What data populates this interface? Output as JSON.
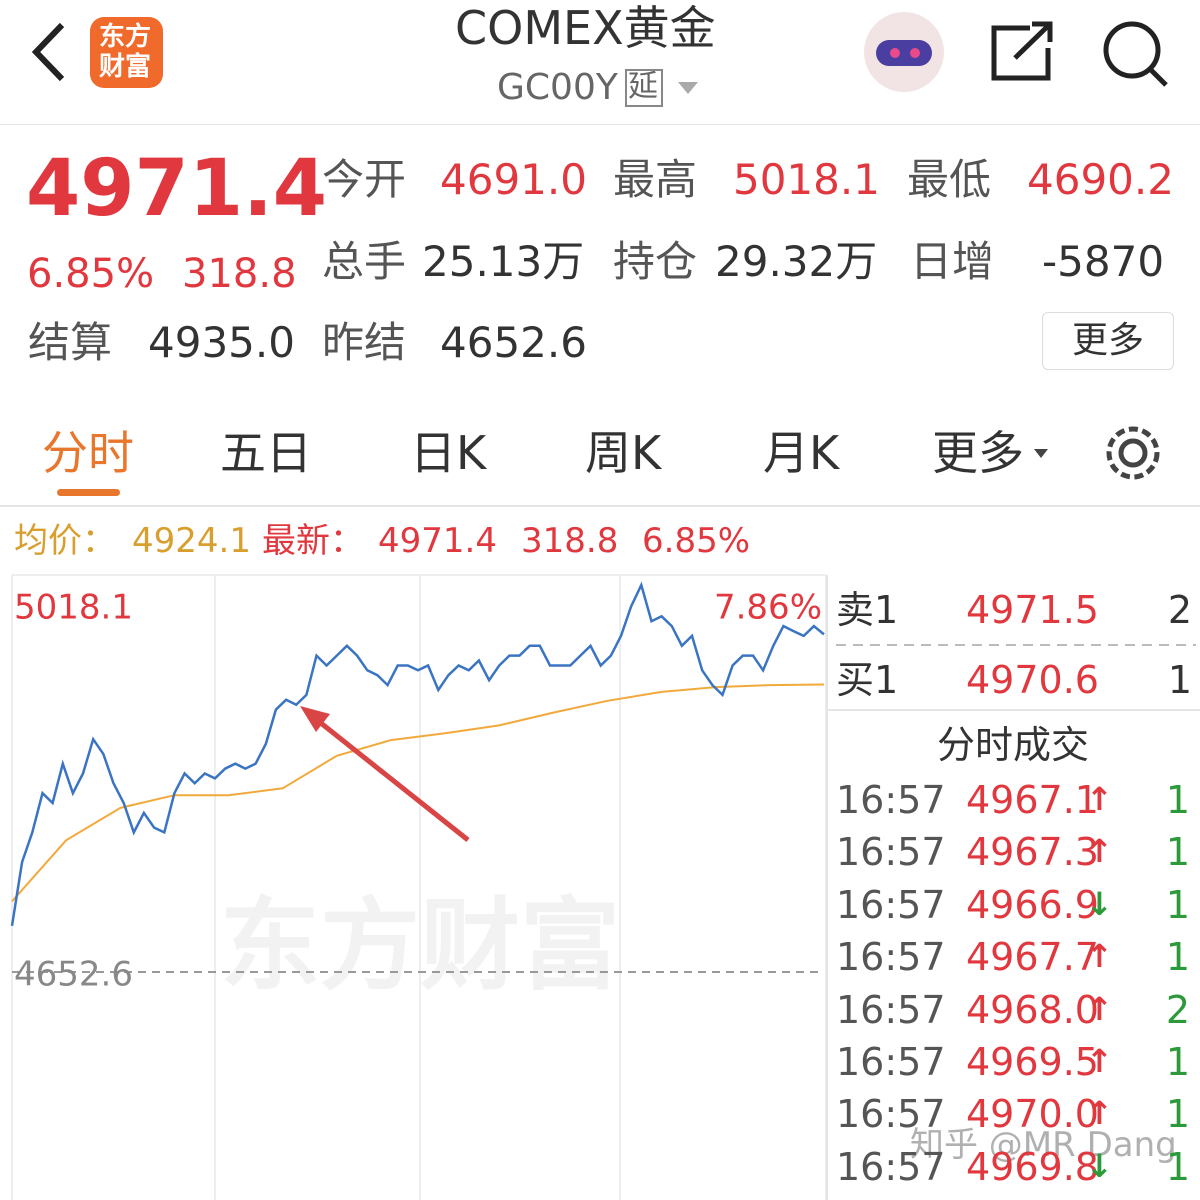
{
  "header": {
    "logo": [
      "东方",
      "财富"
    ],
    "title": "COMEX黄金",
    "code": "GC00Y",
    "delay_badge": "延"
  },
  "quote": {
    "last": "4971.4",
    "change_pct": "6.85%",
    "change": "318.8",
    "fields": [
      {
        "label": "今开",
        "value": "4691.0"
      },
      {
        "label": "最高",
        "value": "5018.1"
      },
      {
        "label": "最低",
        "value": "4690.2"
      },
      {
        "label": "总手",
        "value": "25.13万"
      },
      {
        "label": "持仓",
        "value": "29.32万"
      },
      {
        "label": "日增",
        "value": "-5870"
      },
      {
        "label": "结算",
        "value": "4935.0"
      },
      {
        "label": "昨结",
        "value": "4652.6"
      }
    ],
    "more_button": "更多"
  },
  "tabs": [
    "分时",
    "五日",
    "日K",
    "周K",
    "月K",
    "更多"
  ],
  "chart_info": {
    "avg_label": "均价：",
    "avg": "4924.1",
    "latest_label": "最新：",
    "latest": "4971.4",
    "change": "318.8",
    "change_pct": "6.85%"
  },
  "chart_data": {
    "type": "line",
    "ylim": [
      4287.1,
      5018.1
    ],
    "yticks": [
      4652.6,
      5018.1
    ],
    "top_pct_label": "7.86%",
    "series": [
      {
        "color": "#3a74c2",
        "values": [
          4696.2,
          4756.5,
          4784.4,
          4821.5,
          4812.2,
          4849.3,
          4821.5,
          4840.1,
          4872.5,
          4858.6,
          4830.8,
          4812.2,
          4784.4,
          4802.9,
          4789.0,
          4784.4,
          4821.5,
          4840.1,
          4830.8,
          4840.1,
          4835.4,
          4844.7,
          4849.3,
          4844.7,
          4849.3,
          4867.9,
          4900.4,
          4909.7,
          4905.0,
          4914.3,
          4951.4,
          4942.1,
          4951.4,
          4960.7,
          4951.4,
          4937.5,
          4932.9,
          4923.6,
          4942.1,
          4942.1,
          4937.5,
          4942.1,
          4918.9,
          4932.9,
          4942.1,
          4937.5,
          4946.8,
          4928.2,
          4942.1,
          4951.4,
          4951.4,
          4960.7,
          4960.7,
          4942.1,
          4942.1,
          4942.1,
          4951.4,
          4960.7,
          4942.1,
          4951.4,
          4970.0,
          4997.8,
          5018.1,
          4983.9,
          4988.5,
          4979.3,
          4960.7,
          4970.0,
          4937.5,
          4923.6,
          4914.3,
          4942.1,
          4951.4,
          4951.4,
          4937.5,
          4960.7,
          4979.3,
          4974.6,
          4970.0,
          4979.3,
          4971.4
        ]
      },
      {
        "color": "#f2a93b",
        "values": [
          4719.4,
          4777.0,
          4807.6,
          4819.6,
          4819.6,
          4826.1,
          4856.8,
          4871.6,
          4878.1,
          4885.5,
          4897.6,
          4908.7,
          4917.1,
          4921.7,
          4923.6,
          4924.1
        ]
      }
    ]
  },
  "order_book": [
    {
      "label": "卖1",
      "price": "4971.5",
      "volume": "2"
    },
    {
      "label": "买1",
      "price": "4970.6",
      "volume": "1"
    }
  ],
  "trades_title": "分时成交",
  "trades": [
    {
      "time": "16:57",
      "price": "4967.1",
      "dir": "↑",
      "volume": "1"
    },
    {
      "time": "16:57",
      "price": "4967.3",
      "dir": "↑",
      "volume": "1"
    },
    {
      "time": "16:57",
      "price": "4966.9",
      "dir": "↓",
      "volume": "1"
    },
    {
      "time": "16:57",
      "price": "4967.7",
      "dir": "↑",
      "volume": "1"
    },
    {
      "time": "16:57",
      "price": "4968.0",
      "dir": "↑",
      "volume": "2"
    },
    {
      "time": "16:57",
      "price": "4969.5",
      "dir": "↑",
      "volume": "1"
    },
    {
      "time": "16:57",
      "price": "4970.0",
      "dir": "↑",
      "volume": "1"
    },
    {
      "time": "16:57",
      "price": "4969.8",
      "dir": "↓",
      "volume": "1"
    }
  ],
  "watermarks": {
    "center": "东方财富",
    "corner": "知乎 @MR Dang"
  }
}
